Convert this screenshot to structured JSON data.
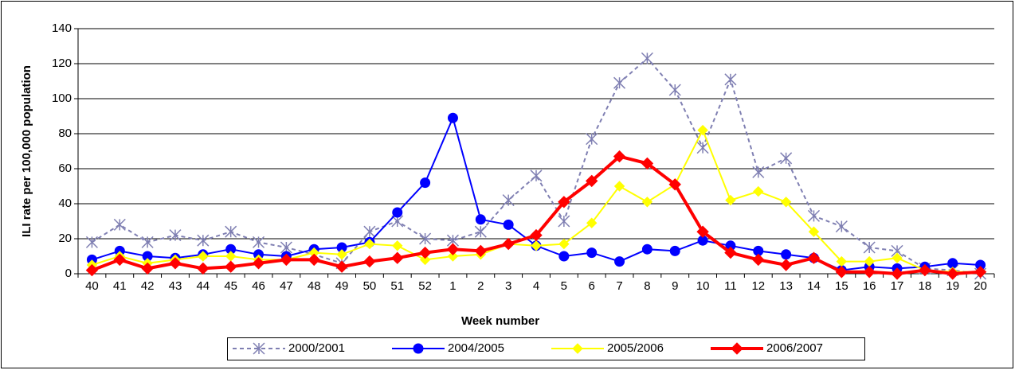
{
  "chart_data": {
    "type": "line",
    "x_label": "Week number",
    "y_label": "ILI rate per 100,000 population",
    "categories": [
      "40",
      "41",
      "42",
      "43",
      "44",
      "45",
      "46",
      "47",
      "48",
      "49",
      "50",
      "51",
      "52",
      "1",
      "2",
      "3",
      "4",
      "5",
      "6",
      "7",
      "8",
      "9",
      "10",
      "11",
      "12",
      "13",
      "14",
      "15",
      "16",
      "17",
      "18",
      "19",
      "20"
    ],
    "ylim": [
      0,
      140
    ],
    "yticks": [
      0,
      20,
      40,
      60,
      80,
      100,
      120,
      140
    ],
    "grid": true,
    "legend": "bottom",
    "series": [
      {
        "name": "2000/2001",
        "color": "#7f7fb2",
        "marker": "star",
        "dash": true,
        "width": 2,
        "values": [
          18,
          28,
          18,
          22,
          19,
          24,
          18,
          15,
          11,
          6,
          24,
          30,
          20,
          19,
          24,
          42,
          56,
          30,
          77,
          109,
          123,
          105,
          72,
          111,
          58,
          66,
          33,
          27,
          15,
          13,
          3,
          2,
          0
        ]
      },
      {
        "name": "2004/2005",
        "color": "#0000ff",
        "marker": "circle",
        "dash": false,
        "width": 2,
        "values": [
          8,
          13,
          10,
          9,
          11,
          14,
          11,
          10,
          14,
          15,
          18,
          35,
          52,
          89,
          31,
          28,
          16,
          10,
          12,
          7,
          14,
          13,
          19,
          16,
          13,
          11,
          9,
          2,
          4,
          3,
          4,
          6,
          5
        ]
      },
      {
        "name": "2005/2006",
        "color": "#ffff00",
        "marker": "diamond",
        "dash": false,
        "width": 2,
        "values": [
          5,
          10,
          6,
          8,
          10,
          10,
          8,
          8,
          12,
          11,
          17,
          16,
          8,
          10,
          11,
          17,
          16,
          17,
          29,
          50,
          41,
          51,
          82,
          42,
          47,
          41,
          24,
          7,
          7,
          9,
          2,
          1,
          1
        ]
      },
      {
        "name": "2006/2007",
        "color": "#ff0000",
        "marker": "diamond",
        "dash": false,
        "width": 4,
        "values": [
          2,
          8,
          3,
          6,
          3,
          4,
          6,
          8,
          8,
          4,
          7,
          9,
          12,
          14,
          13,
          17,
          22,
          41,
          53,
          67,
          63,
          51,
          24,
          12,
          8,
          5,
          9,
          1,
          1,
          0,
          2,
          0,
          1
        ]
      }
    ]
  }
}
